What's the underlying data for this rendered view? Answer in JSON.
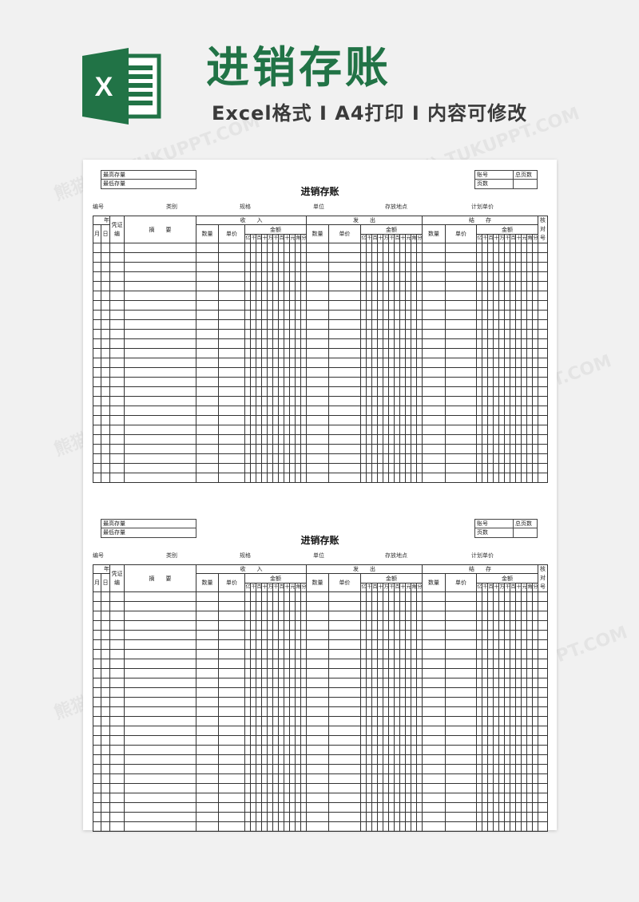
{
  "header": {
    "logo_letter": "X",
    "title": "进销存账",
    "subtitle": "Excel格式 Ⅰ A4打印 Ⅰ 内容可修改",
    "brand_color": "#217346",
    "watermark": "熊猫办公 TUKUPPT.COM"
  },
  "ledger": {
    "title": "进销存账",
    "stock_box": {
      "max_label": "最高存量",
      "min_label": "最低存量"
    },
    "account_box": {
      "account_label": "账号",
      "total_pages_label": "总页数",
      "page_label": "页数"
    },
    "info_fields": [
      "编号",
      "类别",
      "规格",
      "单位",
      "存放地点",
      "计划单价"
    ],
    "columns": {
      "year": "年",
      "month": "月",
      "day": "日",
      "voucher": "凭证编",
      "summary": "摘　　要",
      "receipt": "收　　入",
      "issue": "发　　出",
      "balance": "结　　存",
      "quantity": "数量",
      "unit_price": "单价",
      "amount": "金额",
      "check": "核对号",
      "digits": [
        "亿",
        "千",
        "百",
        "十",
        "万",
        "千",
        "百",
        "十",
        "元",
        "角",
        "分"
      ]
    },
    "body_rows": 25,
    "copies": 2
  }
}
